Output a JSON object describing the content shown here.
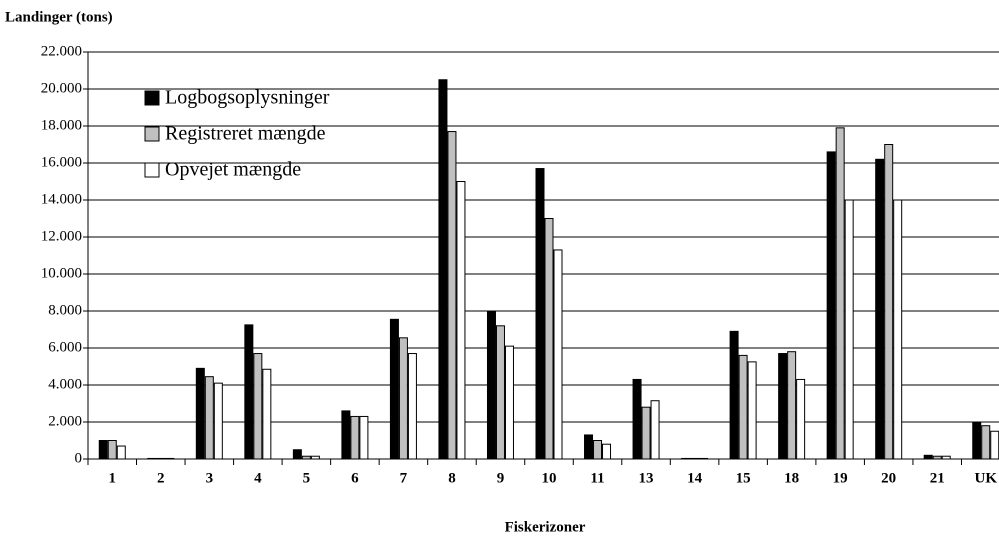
{
  "chart_data": {
    "type": "bar",
    "title": "Landinger (tons)",
    "xlabel": "Fiskerizoner",
    "categories": [
      "1",
      "2",
      "3",
      "4",
      "5",
      "6",
      "7",
      "8",
      "9",
      "10",
      "11",
      "13",
      "14",
      "15",
      "18",
      "19",
      "20",
      "21",
      "UK"
    ],
    "series": [
      {
        "name": "Logbogsoplysninger",
        "color": "#000000",
        "values": [
          1000,
          30,
          4900,
          7250,
          500,
          2600,
          7550,
          20500,
          8000,
          15700,
          1300,
          4300,
          30,
          6900,
          5700,
          16600,
          16200,
          200,
          2000
        ]
      },
      {
        "name": "Registreret mængde",
        "color": "#c0c0c0",
        "values": [
          1000,
          30,
          4450,
          5700,
          150,
          2300,
          6550,
          17700,
          7200,
          13000,
          1000,
          2800,
          30,
          5600,
          5800,
          17900,
          17000,
          150,
          1800
        ]
      },
      {
        "name": "Opvejet mængde",
        "color": "#ffffff",
        "values": [
          700,
          30,
          4100,
          4850,
          150,
          2300,
          5700,
          15000,
          6100,
          11300,
          800,
          3150,
          30,
          5250,
          4300,
          14000,
          14000,
          150,
          1500
        ]
      }
    ],
    "ylim": [
      0,
      22000
    ],
    "yticks": [
      0,
      {
        "value": 2000,
        "label": "2.000"
      },
      {
        "value": 4000,
        "label": "4.000"
      },
      {
        "value": 6000,
        "label": "6.000"
      },
      {
        "value": 8000,
        "label": "8.000"
      },
      {
        "value": 10000,
        "label": "10.000"
      },
      {
        "value": 12000,
        "label": "12.000"
      },
      {
        "value": 14000,
        "label": "14.000"
      },
      {
        "value": 16000,
        "label": "16.000"
      },
      {
        "value": 18000,
        "label": "18.000"
      },
      {
        "value": 20000,
        "label": "20.000"
      },
      {
        "value": 22000,
        "label": "22.000"
      }
    ],
    "grid": true,
    "legend": "upper left"
  }
}
